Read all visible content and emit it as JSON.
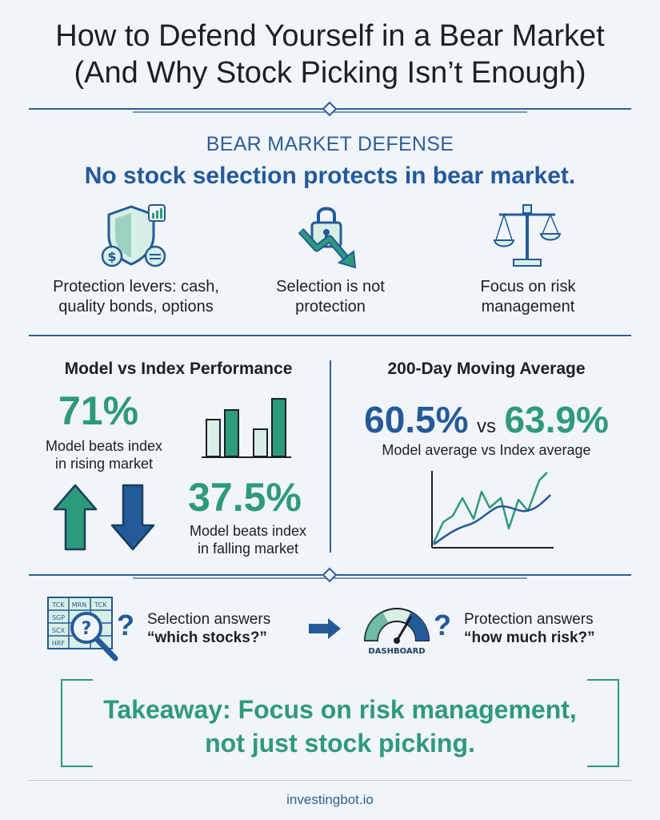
{
  "title": {
    "line1": "How to Defend Yourself in a Bear Market",
    "line2": "(And Why Stock Picking Isn’t Enough)"
  },
  "defense": {
    "heading": "BEAR MARKET DEFENSE",
    "subheading": "No stock selection protects in bear market.",
    "items": [
      {
        "icon": "shield-icon",
        "caption_line1": "Protection levers: cash,",
        "caption_line2": "quality bonds, options"
      },
      {
        "icon": "lock-down-arrow-icon",
        "caption_line1": "Selection is not",
        "caption_line2": "protection"
      },
      {
        "icon": "scale-icon",
        "caption_line1": "Focus on risk",
        "caption_line2": "management"
      }
    ]
  },
  "model_vs_index": {
    "title": "Model vs Index Performance",
    "rising_value": "71%",
    "rising_caption_line1": "Model beats index",
    "rising_caption_line2": "in rising market",
    "falling_value": "37.5%",
    "falling_caption_line1": "Model beats index",
    "falling_caption_line2": "in falling market"
  },
  "moving_average": {
    "title": "200-Day Moving Average",
    "model_value": "60.5%",
    "vs": "vs",
    "index_value": "63.9%",
    "caption": "Model average vs Index average"
  },
  "comparison": {
    "table_cells": [
      "TCK",
      "MRN",
      "TCK",
      "SGP",
      "SCX",
      "HRF"
    ],
    "selection_line1": "Selection answers",
    "selection_line2": "“which stocks?”",
    "gauge_label": "DASHBOARD",
    "protection_line1": "Protection answers",
    "protection_line2": "“how much risk?”",
    "qmark": "?"
  },
  "takeaway": {
    "line1": "Takeaway: Focus on risk management,",
    "line2": "not just stock picking."
  },
  "footer": "investingbot.io",
  "colors": {
    "green": "#2e9a7c",
    "blue": "#245a9a",
    "light_green": "#d8efe6",
    "background": "#f1f4f8"
  }
}
